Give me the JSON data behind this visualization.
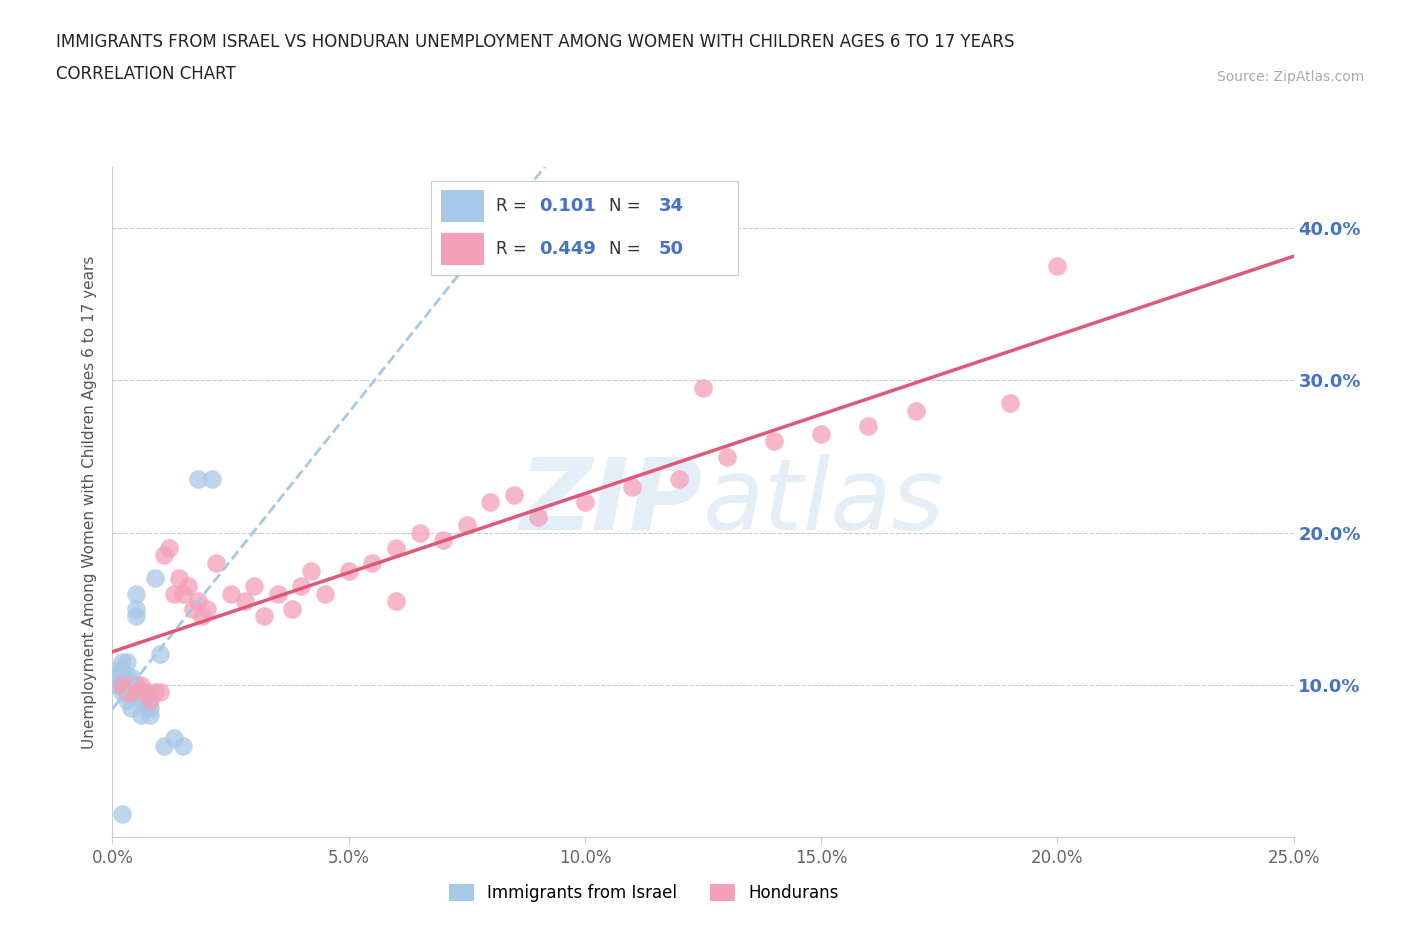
{
  "title_line1": "IMMIGRANTS FROM ISRAEL VS HONDURAN UNEMPLOYMENT AMONG WOMEN WITH CHILDREN AGES 6 TO 17 YEARS",
  "title_line2": "CORRELATION CHART",
  "source_text": "Source: ZipAtlas.com",
  "ylabel": "Unemployment Among Women with Children Ages 6 to 17 years",
  "xlim": [
    0.0,
    0.25
  ],
  "ylim": [
    0.0,
    0.44
  ],
  "color_israel": "#a8c8e8",
  "color_honduran": "#f4a0b8",
  "color_line_israel": "#a8c8e8",
  "color_line_honduran": "#e05878",
  "legend_R_israel": "0.101",
  "legend_N_israel": "34",
  "legend_R_honduran": "0.449",
  "legend_N_honduran": "50",
  "background_color": "#ffffff",
  "grid_color": "#cccccc",
  "israel_x": [
    0.001,
    0.001,
    0.001,
    0.002,
    0.002,
    0.002,
    0.002,
    0.002,
    0.003,
    0.003,
    0.003,
    0.003,
    0.003,
    0.004,
    0.004,
    0.004,
    0.005,
    0.005,
    0.005,
    0.006,
    0.006,
    0.006,
    0.007,
    0.007,
    0.008,
    0.008,
    0.009,
    0.01,
    0.011,
    0.013,
    0.015,
    0.018,
    0.021,
    0.002
  ],
  "israel_y": [
    0.1,
    0.105,
    0.11,
    0.095,
    0.1,
    0.105,
    0.11,
    0.115,
    0.09,
    0.095,
    0.1,
    0.105,
    0.115,
    0.085,
    0.095,
    0.105,
    0.145,
    0.15,
    0.16,
    0.08,
    0.09,
    0.095,
    0.085,
    0.09,
    0.08,
    0.085,
    0.17,
    0.12,
    0.06,
    0.065,
    0.06,
    0.235,
    0.235,
    0.015
  ],
  "honduran_x": [
    0.002,
    0.003,
    0.004,
    0.005,
    0.006,
    0.007,
    0.008,
    0.009,
    0.01,
    0.011,
    0.012,
    0.013,
    0.014,
    0.015,
    0.016,
    0.017,
    0.018,
    0.019,
    0.02,
    0.022,
    0.025,
    0.028,
    0.03,
    0.032,
    0.035,
    0.038,
    0.04,
    0.042,
    0.045,
    0.05,
    0.055,
    0.06,
    0.065,
    0.07,
    0.075,
    0.08,
    0.085,
    0.09,
    0.1,
    0.11,
    0.12,
    0.13,
    0.14,
    0.15,
    0.16,
    0.17,
    0.125,
    0.06,
    0.19,
    0.2
  ],
  "honduran_y": [
    0.1,
    0.095,
    0.095,
    0.1,
    0.1,
    0.095,
    0.09,
    0.095,
    0.095,
    0.185,
    0.19,
    0.16,
    0.17,
    0.16,
    0.165,
    0.15,
    0.155,
    0.145,
    0.15,
    0.18,
    0.16,
    0.155,
    0.165,
    0.145,
    0.16,
    0.15,
    0.165,
    0.175,
    0.16,
    0.175,
    0.18,
    0.19,
    0.2,
    0.195,
    0.205,
    0.22,
    0.225,
    0.21,
    0.22,
    0.23,
    0.235,
    0.25,
    0.26,
    0.265,
    0.27,
    0.28,
    0.295,
    0.155,
    0.285,
    0.375
  ]
}
